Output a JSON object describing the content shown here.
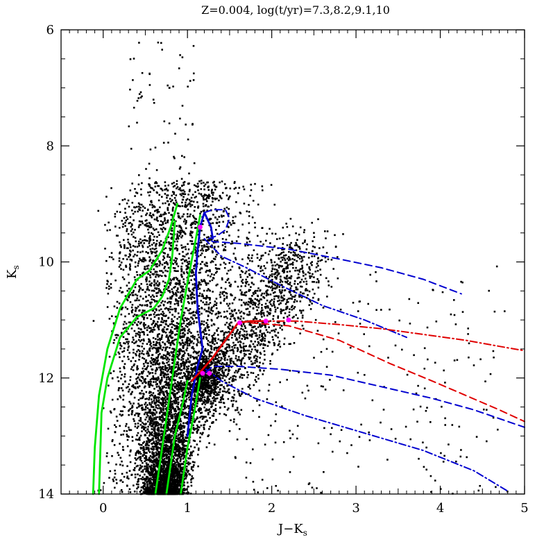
{
  "chart_data": {
    "type": "scatter",
    "title": "Z=0.004,  log(t/yr)=7.3,8.2,9.1,10",
    "xlabel": "J−K",
    "xlabel_sub": "s",
    "ylabel": "K",
    "ylabel_sub": "s",
    "xlim": [
      -0.5,
      5
    ],
    "ylim": [
      14,
      6
    ],
    "y_inverted": true,
    "grid": false,
    "x_ticks": [
      0,
      1,
      2,
      3,
      4,
      5
    ],
    "x_tick_labels": [
      "0",
      "1",
      "2",
      "3",
      "4",
      "5"
    ],
    "y_ticks": [
      6,
      8,
      10,
      12,
      14
    ],
    "y_tick_labels": [
      "6",
      "8",
      "10",
      "12",
      "14"
    ],
    "colors": {
      "stars": "#000000",
      "green": "#00e600",
      "blue": "#0000d0",
      "red": "#e00000",
      "magenta": "#ff00ff"
    },
    "stellar_distribution": {
      "main_plume": {
        "x_range": [
          0.3,
          1.3
        ],
        "y_range": [
          8.5,
          14
        ],
        "density": "very high at faint end"
      },
      "red_clump": {
        "x": 1.2,
        "y": 12.0
      },
      "red_giant_branch_tail": {
        "x_range": [
          1.1,
          2.5
        ],
        "y_range": [
          10.0,
          12.5
        ]
      },
      "sparse_red_stars": {
        "x_range": [
          1.5,
          4.8
        ],
        "y_range": [
          10,
          14
        ]
      }
    },
    "series": [
      {
        "style": "solid",
        "color": "green",
        "points": [
          [
            -0.12,
            14.0
          ],
          [
            -0.1,
            13.2
          ],
          [
            -0.05,
            12.3
          ],
          [
            0.05,
            11.5
          ],
          [
            0.2,
            10.8
          ],
          [
            0.4,
            10.3
          ],
          [
            0.55,
            10.15
          ],
          [
            0.7,
            9.8
          ],
          [
            0.8,
            9.4
          ],
          [
            0.88,
            9.0
          ]
        ]
      },
      {
        "style": "solid",
        "color": "green",
        "points": [
          [
            -0.05,
            14.0
          ],
          [
            -0.02,
            12.6
          ],
          [
            0.05,
            12.0
          ],
          [
            0.2,
            11.3
          ],
          [
            0.4,
            10.95
          ],
          [
            0.6,
            10.8
          ],
          [
            0.7,
            10.6
          ],
          [
            0.78,
            10.3
          ],
          [
            0.82,
            9.9
          ],
          [
            0.85,
            9.3
          ]
        ]
      },
      {
        "style": "solid",
        "color": "green",
        "points": [
          [
            0.62,
            14.0
          ],
          [
            0.72,
            13.0
          ],
          [
            0.82,
            12.0
          ],
          [
            0.92,
            11.0
          ],
          [
            1.02,
            10.2
          ],
          [
            1.1,
            9.6
          ],
          [
            1.15,
            9.2
          ]
        ]
      },
      {
        "style": "solid",
        "color": "green",
        "points": [
          [
            0.75,
            14.0
          ],
          [
            0.85,
            13.0
          ],
          [
            0.95,
            12.4
          ],
          [
            1.0,
            12.05
          ]
        ]
      },
      {
        "style": "solid",
        "color": "green",
        "points": [
          [
            0.92,
            14.0
          ],
          [
            1.0,
            13.2
          ],
          [
            1.08,
            12.6
          ],
          [
            1.15,
            12.0
          ]
        ]
      },
      {
        "style": "solid",
        "color": "blue",
        "points": [
          [
            1.0,
            13.0
          ],
          [
            1.05,
            12.3
          ],
          [
            1.12,
            11.8
          ],
          [
            1.18,
            11.5
          ],
          [
            1.12,
            10.8
          ],
          [
            1.1,
            10.2
          ],
          [
            1.12,
            9.8
          ],
          [
            1.15,
            9.4
          ],
          [
            1.2,
            9.15
          ],
          [
            1.28,
            9.4
          ],
          [
            1.3,
            9.6
          ]
        ]
      },
      {
        "style": "dashed",
        "color": "blue",
        "points": [
          [
            1.2,
            9.15
          ],
          [
            1.3,
            9.1
          ],
          [
            1.45,
            9.1
          ],
          [
            1.5,
            9.25
          ],
          [
            1.45,
            9.45
          ],
          [
            1.35,
            9.55
          ],
          [
            1.25,
            9.6
          ],
          [
            1.3,
            9.65
          ],
          [
            1.6,
            9.68
          ],
          [
            2.2,
            9.78
          ],
          [
            2.8,
            9.95
          ],
          [
            3.3,
            10.1
          ],
          [
            3.8,
            10.3
          ],
          [
            4.25,
            10.55
          ]
        ]
      },
      {
        "style": "dashdot",
        "color": "blue",
        "points": [
          [
            1.2,
            9.6
          ],
          [
            1.4,
            9.9
          ],
          [
            1.7,
            10.1
          ],
          [
            2.1,
            10.4
          ],
          [
            2.6,
            10.75
          ],
          [
            3.1,
            11.0
          ],
          [
            3.6,
            11.3
          ]
        ]
      },
      {
        "style": "dashdot",
        "color": "blue",
        "points": [
          [
            1.22,
            11.85
          ],
          [
            1.4,
            12.05
          ],
          [
            1.8,
            12.35
          ],
          [
            2.4,
            12.65
          ],
          [
            3.1,
            12.95
          ],
          [
            3.8,
            13.25
          ],
          [
            4.4,
            13.6
          ],
          [
            4.8,
            13.95
          ]
        ]
      },
      {
        "style": "dashed",
        "color": "blue",
        "points": [
          [
            1.22,
            11.9
          ],
          [
            1.3,
            11.8
          ],
          [
            1.6,
            11.8
          ],
          [
            2.1,
            11.85
          ],
          [
            2.7,
            11.95
          ],
          [
            3.3,
            12.15
          ],
          [
            3.9,
            12.35
          ],
          [
            4.4,
            12.55
          ],
          [
            4.8,
            12.75
          ],
          [
            5.0,
            12.85
          ]
        ]
      },
      {
        "style": "solid",
        "color": "red",
        "points": [
          [
            1.05,
            12.05
          ],
          [
            1.15,
            11.9
          ],
          [
            1.3,
            11.65
          ],
          [
            1.45,
            11.35
          ],
          [
            1.6,
            11.05
          ],
          [
            1.75,
            11.02
          ],
          [
            1.9,
            11.02
          ]
        ]
      },
      {
        "style": "dashdot",
        "color": "red",
        "points": [
          [
            1.9,
            11.02
          ],
          [
            2.3,
            11.02
          ],
          [
            2.8,
            11.08
          ],
          [
            3.3,
            11.15
          ],
          [
            3.8,
            11.25
          ],
          [
            4.3,
            11.35
          ],
          [
            4.8,
            11.48
          ],
          [
            5.0,
            11.53
          ]
        ]
      },
      {
        "style": "dashed",
        "color": "red",
        "points": [
          [
            1.75,
            11.05
          ],
          [
            2.2,
            11.1
          ],
          [
            2.8,
            11.35
          ],
          [
            3.4,
            11.75
          ],
          [
            3.9,
            12.05
          ],
          [
            4.3,
            12.3
          ],
          [
            4.7,
            12.55
          ],
          [
            5.0,
            12.75
          ]
        ]
      }
    ],
    "markers": [
      {
        "color": "magenta",
        "x": 1.15,
        "y": 9.4
      },
      {
        "color": "magenta",
        "x": 1.62,
        "y": 11.05
      },
      {
        "color": "magenta",
        "x": 1.93,
        "y": 11.02
      },
      {
        "color": "magenta",
        "x": 2.2,
        "y": 11.0
      },
      {
        "color": "magenta",
        "x": 1.18,
        "y": 11.92
      },
      {
        "color": "magenta",
        "x": 1.26,
        "y": 11.92
      }
    ]
  }
}
